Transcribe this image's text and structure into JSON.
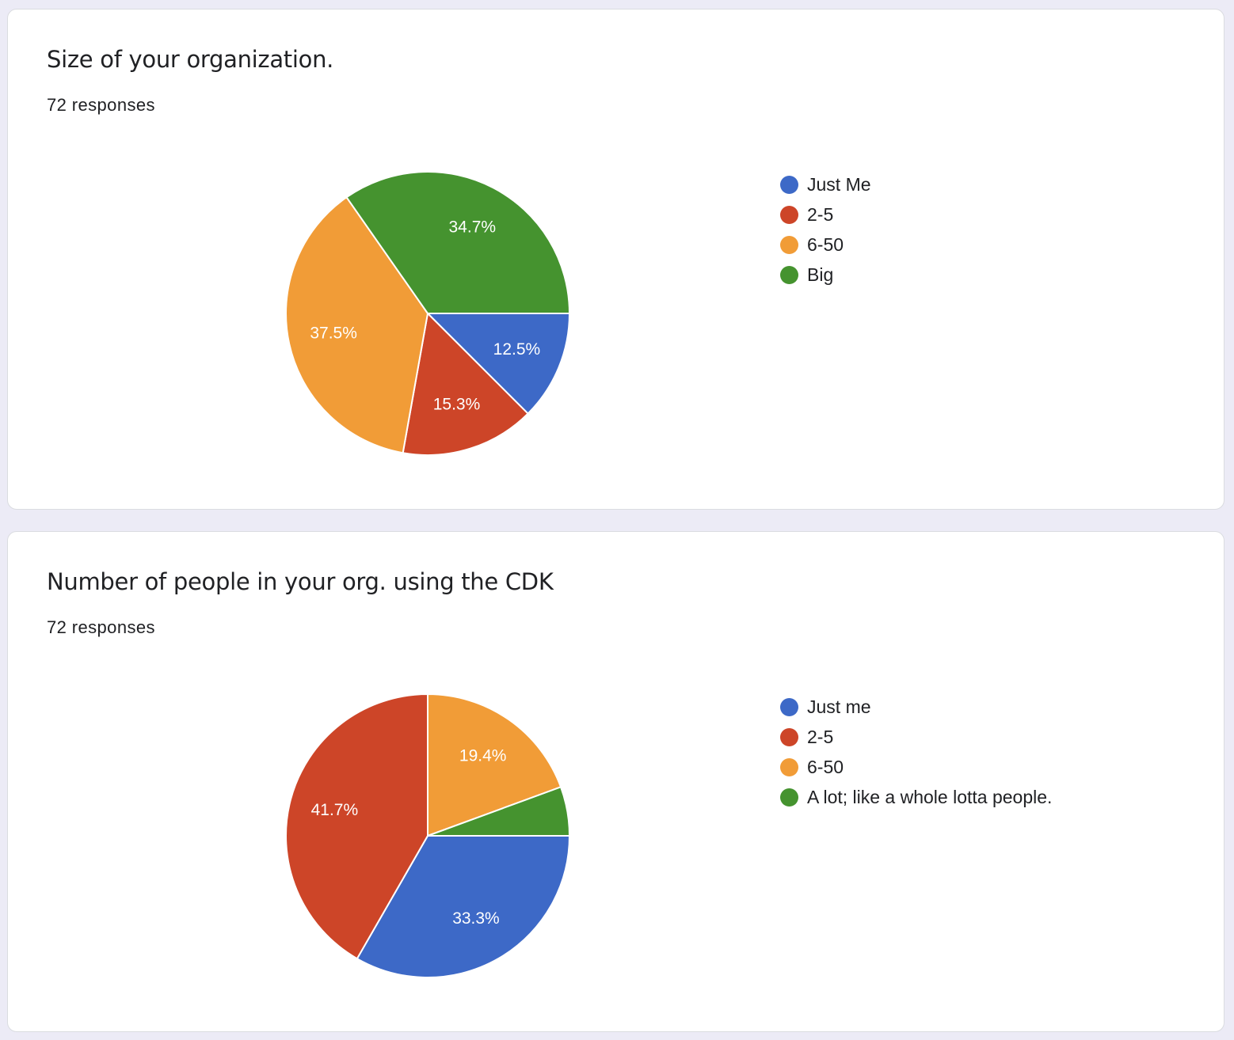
{
  "chart_data": [
    {
      "type": "pie",
      "title": "Size of your organization.",
      "subtitle": "72 responses",
      "start": "3 o'clock, clockwise",
      "legend_position": "right",
      "slices": [
        {
          "label": "Just Me",
          "value": 12.5,
          "display": "12.5%",
          "color": "#3d69c7"
        },
        {
          "label": "2-5",
          "value": 15.3,
          "display": "15.3%",
          "color": "#cd4528"
        },
        {
          "label": "6-50",
          "value": 37.5,
          "display": "37.5%",
          "color": "#f19c37"
        },
        {
          "label": "Big",
          "value": 34.7,
          "display": "34.7%",
          "color": "#45932f"
        }
      ]
    },
    {
      "type": "pie",
      "title": "Number of people in your org. using the CDK",
      "subtitle": "72 responses",
      "start": "3 o'clock, clockwise",
      "legend_position": "right",
      "slices": [
        {
          "label": "Just me",
          "value": 33.3,
          "display": "33.3%",
          "color": "#3d69c7"
        },
        {
          "label": "2-5",
          "value": 41.7,
          "display": "41.7%",
          "color": "#cd4528"
        },
        {
          "label": "6-50",
          "value": 19.4,
          "display": "19.4%",
          "color": "#f19c37"
        },
        {
          "label": "A lot; like a whole lotta people.",
          "value": 5.6,
          "display": "",
          "color": "#45932f"
        }
      ]
    }
  ]
}
